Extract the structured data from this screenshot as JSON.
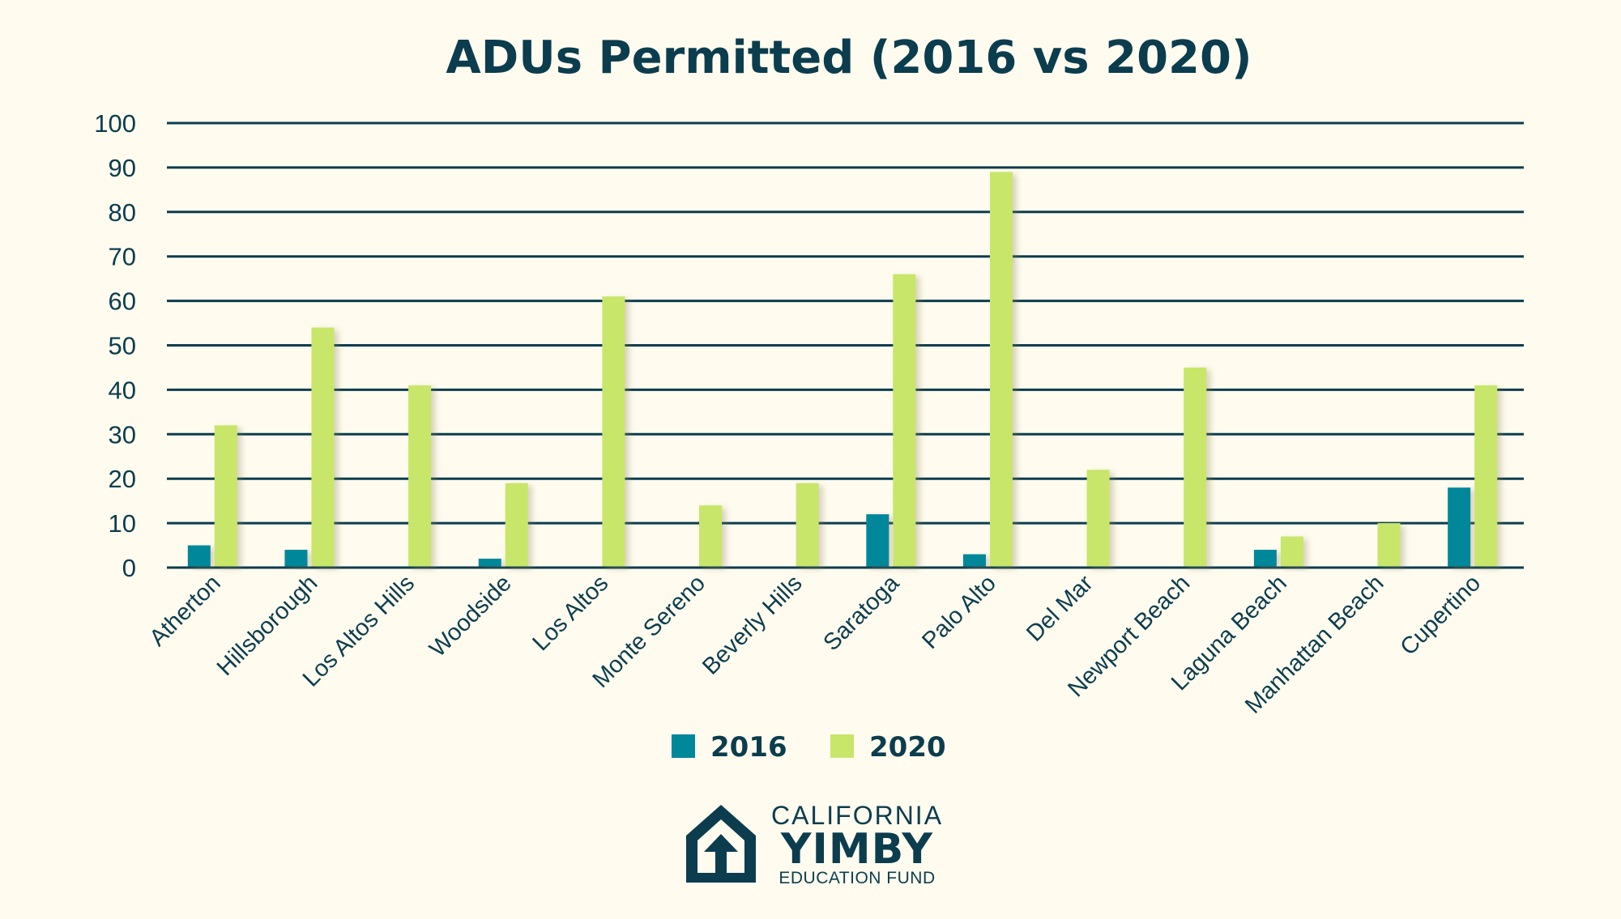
{
  "chart_data": {
    "type": "bar",
    "title": "ADUs Permitted (2016 vs 2020)",
    "xlabel": "",
    "ylabel": "",
    "ylim": [
      0,
      100
    ],
    "yticks": [
      0,
      10,
      20,
      30,
      40,
      50,
      60,
      70,
      80,
      90,
      100
    ],
    "grid": true,
    "legend_position": "bottom",
    "categories": [
      "Atherton",
      "Hillsborough",
      "Los Altos Hills",
      "Woodside",
      "Los Altos",
      "Monte Sereno",
      "Beverly Hills",
      "Saratoga",
      "Palo Alto",
      "Del Mar",
      "Newport Beach",
      "Laguna Beach",
      "Manhattan Beach",
      "Cupertino"
    ],
    "series": [
      {
        "name": "2016",
        "color": "#00879a",
        "values": [
          5,
          4,
          0,
          2,
          0,
          0,
          0,
          12,
          3,
          0,
          0,
          4,
          0,
          18
        ]
      },
      {
        "name": "2020",
        "color": "#c8e66a",
        "values": [
          32,
          54,
          41,
          19,
          61,
          14,
          19,
          66,
          89,
          22,
          45,
          7,
          10,
          41
        ]
      }
    ]
  },
  "logo": {
    "line1": "CALIFORNIA",
    "line2": "YIMBY",
    "line3": "EDUCATION FUND"
  },
  "colors": {
    "background": "#fffcef",
    "text": "#0b3d4e",
    "grid": "#0b3d4e"
  }
}
